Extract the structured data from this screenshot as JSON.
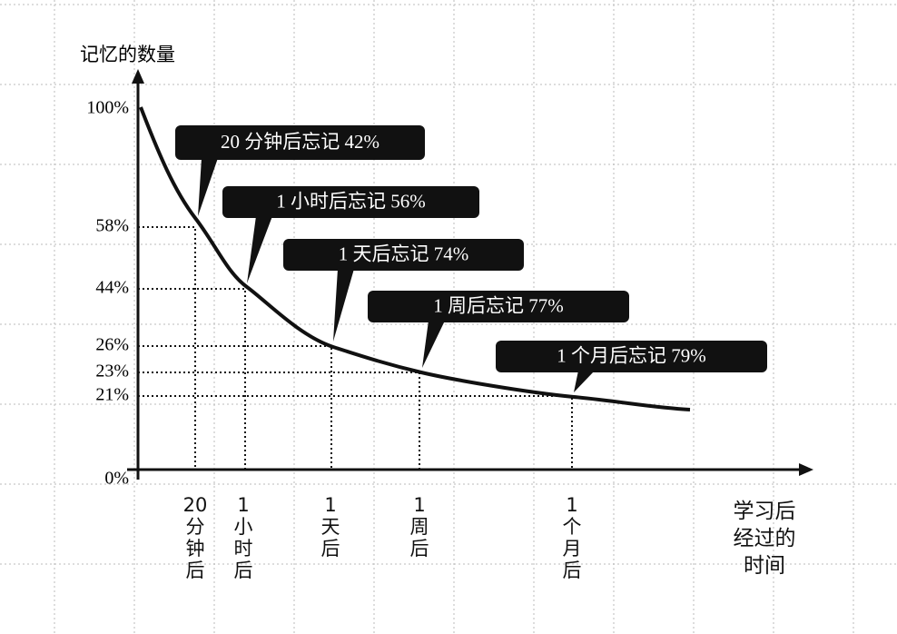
{
  "y_axis": {
    "label": "记忆的数量",
    "ticks": [
      "100%",
      "58%",
      "44%",
      "26%",
      "23%",
      "21%",
      "0%"
    ]
  },
  "x_axis": {
    "label": "学习后经过的时间",
    "ticks": [
      "20分钟后",
      "1小时后",
      "1天后",
      "1周后",
      "1个月后"
    ]
  },
  "callouts": [
    "20 分钟后忘记 42%",
    "1 小时后忘记 56%",
    "1 天后忘记 74%",
    "1 周后忘记 77%",
    "1 个月后忘记 79%"
  ]
}
